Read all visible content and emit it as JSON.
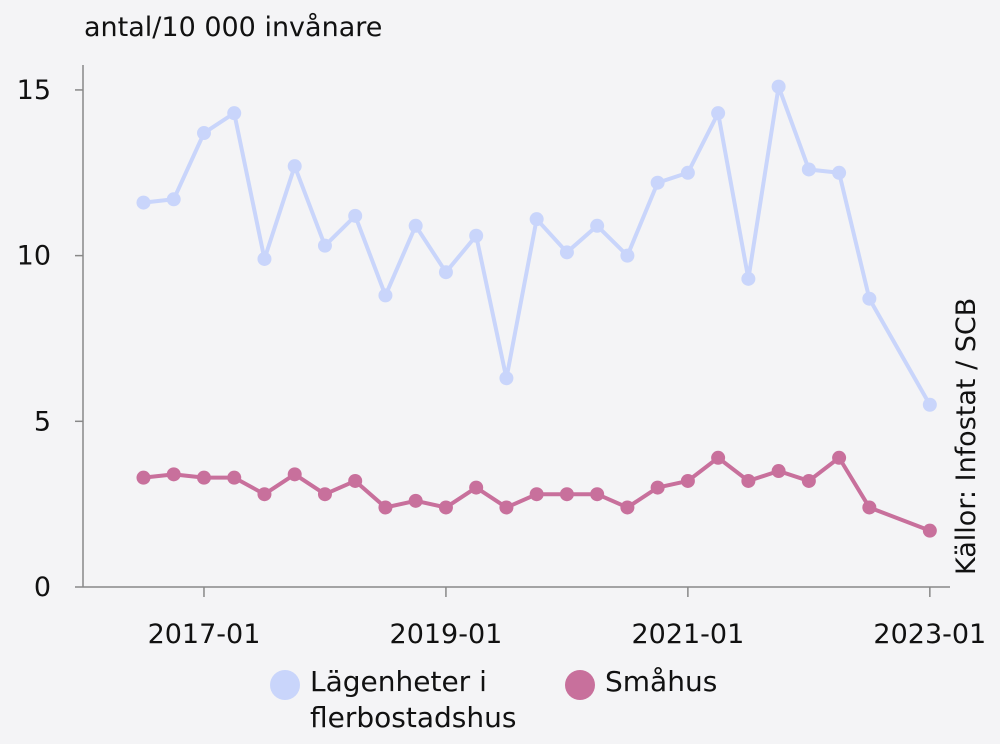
{
  "chart_data": {
    "type": "line",
    "title": "antal/10 000 invånare",
    "source": "Källor: Infostat / SCB",
    "x": [
      "2016-07",
      "2016-10",
      "2017-01",
      "2017-04",
      "2017-07",
      "2017-10",
      "2018-01",
      "2018-04",
      "2018-07",
      "2018-10",
      "2019-01",
      "2019-04",
      "2019-07",
      "2019-10",
      "2020-01",
      "2020-04",
      "2020-07",
      "2020-10",
      "2021-01",
      "2021-04",
      "2021-07",
      "2021-10",
      "2022-01",
      "2022-04",
      "2022-07",
      "2023-01"
    ],
    "series": [
      {
        "name": "Lägenheter i flerbostadshus",
        "color": "#c9d5fb",
        "values": [
          11.6,
          11.7,
          13.7,
          14.3,
          9.9,
          12.7,
          10.3,
          11.2,
          8.8,
          10.9,
          9.5,
          10.6,
          6.3,
          11.1,
          10.1,
          10.9,
          10.0,
          12.2,
          12.5,
          14.3,
          9.3,
          15.1,
          12.6,
          12.5,
          8.7,
          5.5
        ]
      },
      {
        "name": "Småhus",
        "color": "#c8709c",
        "values": [
          3.3,
          3.4,
          3.3,
          3.3,
          2.8,
          3.4,
          2.8,
          3.2,
          2.4,
          2.6,
          2.4,
          3.0,
          2.4,
          2.8,
          2.8,
          2.8,
          2.4,
          3.0,
          3.2,
          3.9,
          3.2,
          3.5,
          3.2,
          3.9,
          2.4,
          1.7
        ]
      }
    ],
    "xlim": [
      "2016-01",
      "2023-03"
    ],
    "xticks": [
      "2017-01",
      "2019-01",
      "2021-01",
      "2023-01"
    ],
    "ylim": [
      0,
      15.3
    ],
    "yticks": [
      0,
      5,
      10,
      15
    ],
    "grid": false
  }
}
